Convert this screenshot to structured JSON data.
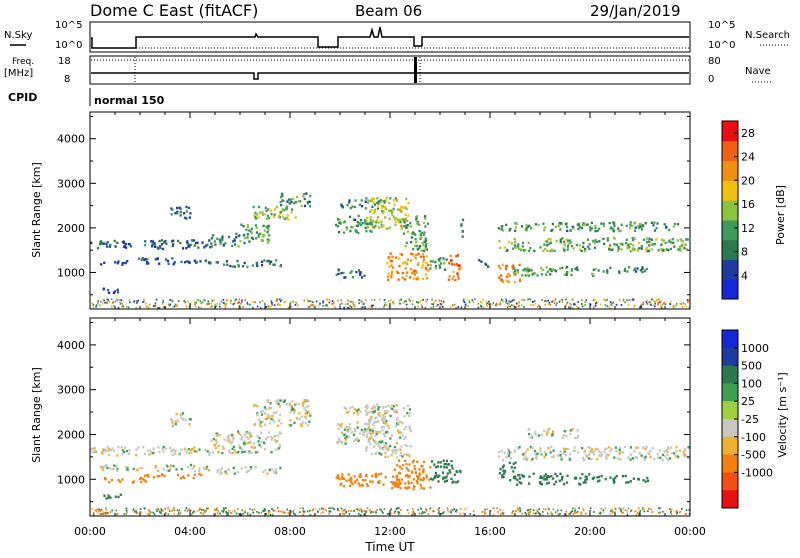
{
  "header": {
    "title": "Dome C East (fitACF)",
    "beam": "Beam 06",
    "date": "29/Jan/2019"
  },
  "top_panel": {
    "nsky_label": "N.Sky",
    "nsearch_label": "N.Search",
    "freq_label": "Freq.",
    "freq_unit": "[MHz]",
    "nave_label": "Nave",
    "cpid_label": "CPID",
    "cpid_value": "normal 150",
    "noise_ticks_left": [
      "10^5",
      "10^0"
    ],
    "noise_ticks_right": [
      "10^5",
      "10^0"
    ],
    "freq_ticks": [
      "18",
      "8"
    ],
    "nave_ticks": [
      "80",
      "0"
    ]
  },
  "colors": {
    "power_scale": [
      "#1428d8",
      "#1e3c9e",
      "#2a7a4e",
      "#3c9a5a",
      "#8cc43c",
      "#f0c010",
      "#f09010",
      "#f06010",
      "#e81010"
    ],
    "velocity_scale": [
      "#1428d8",
      "#1e3c9e",
      "#2a7a4e",
      "#3ca050",
      "#a0d040",
      "#c8c8c0",
      "#f0b030",
      "#f08010",
      "#f05010",
      "#e81010"
    ],
    "background_echo": "#c8c8c0"
  },
  "chart_data": [
    {
      "type": "heatmap",
      "name": "Power",
      "xlabel": "",
      "ylabel": "Slant Range [km]",
      "xlim": [
        "00:00",
        "24:00"
      ],
      "ylim": [
        180,
        4600
      ],
      "yticks": [
        1000,
        2000,
        3000,
        4000
      ],
      "colorbar_label": "Power [dB]",
      "colorbar_ticks": [
        4,
        8,
        12,
        16,
        20,
        24,
        28
      ],
      "colorbar_range": [
        0,
        30
      ],
      "bands": [
        {
          "t": [
            0.0,
            1.6
          ],
          "r": [
            1550,
            1750
          ],
          "v": 6
        },
        {
          "t": [
            0.3,
            1.5
          ],
          "r": [
            1200,
            1300
          ],
          "v": 5
        },
        {
          "t": [
            0.5,
            1.2
          ],
          "r": [
            550,
            700
          ],
          "v": 4
        },
        {
          "t": [
            1.8,
            4.8
          ],
          "r": [
            1550,
            1750
          ],
          "v": 6
        },
        {
          "t": [
            1.9,
            4.8
          ],
          "r": [
            1200,
            1350
          ],
          "v": 6
        },
        {
          "t": [
            3.2,
            4.0
          ],
          "r": [
            2200,
            2500
          ],
          "v": 7
        },
        {
          "t": [
            4.8,
            6.0
          ],
          "r": [
            1600,
            1900
          ],
          "v": 10
        },
        {
          "t": [
            5.0,
            7.6
          ],
          "r": [
            1150,
            1300
          ],
          "v": 8
        },
        {
          "t": [
            6.0,
            7.2
          ],
          "r": [
            1650,
            2100
          ],
          "v": 12
        },
        {
          "t": [
            6.5,
            8.3
          ],
          "r": [
            2200,
            2500
          ],
          "v": 15
        },
        {
          "t": [
            7.5,
            8.8
          ],
          "r": [
            2500,
            2800
          ],
          "v": 10
        },
        {
          "t": [
            9.8,
            11.3
          ],
          "r": [
            1900,
            2300
          ],
          "v": 11
        },
        {
          "t": [
            9.8,
            11.0
          ],
          "r": [
            900,
            1100
          ],
          "v": 8
        },
        {
          "t": [
            10.0,
            11.8
          ],
          "r": [
            2450,
            2650
          ],
          "v": 10
        },
        {
          "t": [
            11.0,
            12.7
          ],
          "r": [
            2000,
            2700
          ],
          "v": 16
        },
        {
          "t": [
            11.8,
            13.5
          ],
          "r": [
            850,
            1450
          ],
          "v": 22
        },
        {
          "t": [
            12.5,
            13.5
          ],
          "r": [
            1500,
            2300
          ],
          "v": 12
        },
        {
          "t": [
            13.5,
            14.3
          ],
          "r": [
            1050,
            1350
          ],
          "v": 12
        },
        {
          "t": [
            14.3,
            14.8
          ],
          "r": [
            850,
            1450
          ],
          "v": 24
        },
        {
          "t": [
            14.8,
            14.9
          ],
          "r": [
            1800,
            2400
          ],
          "v": 7
        },
        {
          "t": [
            15.5,
            16.0
          ],
          "r": [
            1150,
            1300
          ],
          "v": 7
        },
        {
          "t": [
            16.3,
            17.2
          ],
          "r": [
            800,
            1200
          ],
          "v": 22
        },
        {
          "t": [
            16.3,
            23.9
          ],
          "r": [
            1500,
            1800
          ],
          "v": 13
        },
        {
          "t": [
            16.3,
            23.5
          ],
          "r": [
            1950,
            2150
          ],
          "v": 11
        },
        {
          "t": [
            16.8,
            20.5
          ],
          "r": [
            950,
            1150
          ],
          "v": 11
        },
        {
          "t": [
            20.5,
            22.3
          ],
          "r": [
            1000,
            1150
          ],
          "v": 9
        }
      ],
      "near_range_clutter": {
        "t": [
          0.0,
          24.0
        ],
        "r": [
          180,
          420
        ]
      }
    },
    {
      "type": "heatmap",
      "name": "Velocity",
      "xlabel": "Time UT",
      "ylabel": "Slant Range [km]",
      "xlim": [
        "00:00",
        "24:00"
      ],
      "ylim": [
        180,
        4600
      ],
      "xticks": [
        "00:00",
        "04:00",
        "08:00",
        "12:00",
        "16:00",
        "20:00",
        "00:00"
      ],
      "yticks": [
        1000,
        2000,
        3000,
        4000
      ],
      "colorbar_label": "Velocity [m s⁻¹]",
      "colorbar_ticks": [
        "1000",
        "500",
        "100",
        "25",
        "-25",
        "-100",
        "-500",
        "-1000"
      ],
      "bands": [
        {
          "t": [
            0.0,
            4.8
          ],
          "r": [
            1550,
            1750
          ],
          "v": 0
        },
        {
          "t": [
            0.3,
            4.8
          ],
          "r": [
            1200,
            1350
          ],
          "v": 0
        },
        {
          "t": [
            0.5,
            1.2
          ],
          "r": [
            550,
            700
          ],
          "v": 150
        },
        {
          "t": [
            0.5,
            2.2
          ],
          "r": [
            950,
            1050
          ],
          "v": -150
        },
        {
          "t": [
            2.0,
            4.5
          ],
          "r": [
            1050,
            1150
          ],
          "v": -150
        },
        {
          "t": [
            3.2,
            4.0
          ],
          "r": [
            2200,
            2500
          ],
          "v": 0
        },
        {
          "t": [
            4.8,
            7.6
          ],
          "r": [
            1600,
            2100
          ],
          "v": 0
        },
        {
          "t": [
            5.0,
            7.6
          ],
          "r": [
            1150,
            1300
          ],
          "v": 0
        },
        {
          "t": [
            6.5,
            8.8
          ],
          "r": [
            2200,
            2800
          ],
          "v": 0
        },
        {
          "t": [
            9.8,
            11.3
          ],
          "r": [
            1800,
            2300
          ],
          "v": 0
        },
        {
          "t": [
            10.0,
            11.8
          ],
          "r": [
            2450,
            2650
          ],
          "v": 0
        },
        {
          "t": [
            9.8,
            12.4
          ],
          "r": [
            850,
            1150
          ],
          "v": -300
        },
        {
          "t": [
            11.0,
            12.8
          ],
          "r": [
            1500,
            2700
          ],
          "v": 0
        },
        {
          "t": [
            12.0,
            13.6
          ],
          "r": [
            800,
            1450
          ],
          "v": -300
        },
        {
          "t": [
            13.6,
            14.8
          ],
          "r": [
            950,
            1450
          ],
          "v": 150
        },
        {
          "t": [
            16.3,
            17.0
          ],
          "r": [
            1000,
            1400
          ],
          "v": 200
        },
        {
          "t": [
            16.3,
            23.9
          ],
          "r": [
            1450,
            1750
          ],
          "v": 0
        },
        {
          "t": [
            17.5,
            19.5
          ],
          "r": [
            1950,
            2150
          ],
          "v": 0
        },
        {
          "t": [
            17.0,
            20.0
          ],
          "r": [
            900,
            1150
          ],
          "v": 200
        },
        {
          "t": [
            20.0,
            22.3
          ],
          "r": [
            950,
            1100
          ],
          "v": 150
        }
      ],
      "near_range_clutter": {
        "t": [
          0.0,
          24.0
        ],
        "r": [
          180,
          380
        ]
      }
    }
  ]
}
